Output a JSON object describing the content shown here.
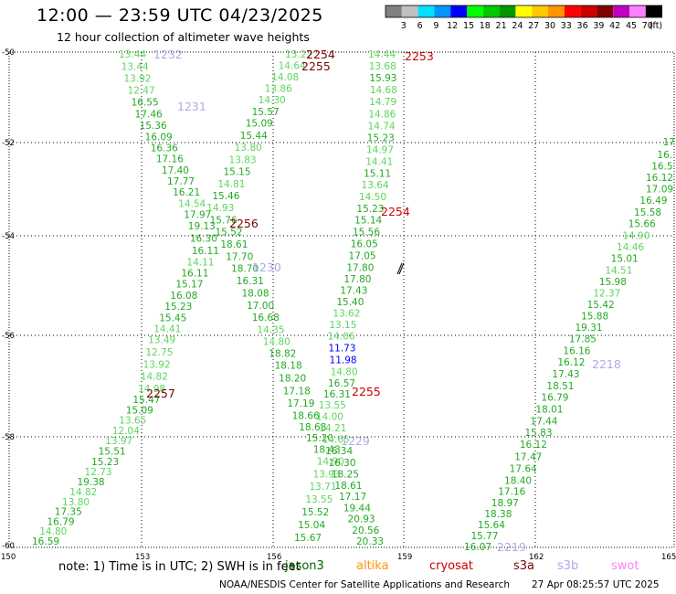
{
  "header": {
    "title": "12:00 — 23:59 UTC 04/23/2025",
    "subtitle": "12 hour collection of altimeter wave heights"
  },
  "scale": {
    "unit": "(ft)",
    "bins": [
      {
        "label": "",
        "color": "#808080"
      },
      {
        "label": "3",
        "color": "#c0c0c0"
      },
      {
        "label": "6",
        "color": "#00e0ff"
      },
      {
        "label": "9",
        "color": "#0096ff"
      },
      {
        "label": "12",
        "color": "#0000ff"
      },
      {
        "label": "15",
        "color": "#00ff00"
      },
      {
        "label": "18",
        "color": "#00c800"
      },
      {
        "label": "21",
        "color": "#009600"
      },
      {
        "label": "24",
        "color": "#ffff00"
      },
      {
        "label": "27",
        "color": "#ffc800"
      },
      {
        "label": "30",
        "color": "#ff9600"
      },
      {
        "label": "33",
        "color": "#ff0000"
      },
      {
        "label": "36",
        "color": "#c80000"
      },
      {
        "label": "39",
        "color": "#800000"
      },
      {
        "label": "42",
        "color": "#c000c0"
      },
      {
        "label": "45",
        "color": "#ff80ff"
      },
      {
        "label": "70",
        "color": "#000000"
      }
    ]
  },
  "axes": {
    "lat_labels": [
      "-50",
      "-52",
      "-54",
      "-56",
      "-58",
      "-60"
    ],
    "lon_labels": [
      "150",
      "153",
      "156",
      "159",
      "162",
      "165"
    ]
  },
  "tracks": [
    {
      "id": "t1",
      "values": [
        {
          "v": "13.44",
          "c": "#5cd65c"
        },
        {
          "v": "13.44",
          "c": "#5cd65c"
        },
        {
          "v": "13.92",
          "c": "#5cd65c"
        },
        {
          "v": "12.47",
          "c": "#5cd65c"
        },
        {
          "v": "16.55",
          "c": "#22aa22"
        },
        {
          "v": "17.46",
          "c": "#22aa22"
        },
        {
          "v": "15.36",
          "c": "#22aa22"
        },
        {
          "v": "16.09",
          "c": "#22aa22"
        },
        {
          "v": "16.36",
          "c": "#22aa22"
        },
        {
          "v": "17.16",
          "c": "#22aa22"
        },
        {
          "v": "17.40",
          "c": "#22aa22"
        },
        {
          "v": "17.77",
          "c": "#22aa22"
        },
        {
          "v": "16.21",
          "c": "#22aa22"
        },
        {
          "v": "14.54",
          "c": "#5cd65c"
        },
        {
          "v": "17.97",
          "c": "#22aa22"
        },
        {
          "v": "19.13",
          "c": "#22aa22"
        },
        {
          "v": "16.30",
          "c": "#22aa22"
        },
        {
          "v": "16.11",
          "c": "#22aa22"
        },
        {
          "v": "14.11",
          "c": "#5cd65c"
        },
        {
          "v": "16.11",
          "c": "#22aa22"
        },
        {
          "v": "15.17",
          "c": "#22aa22"
        },
        {
          "v": "16.08",
          "c": "#22aa22"
        },
        {
          "v": "15.23",
          "c": "#22aa22"
        },
        {
          "v": "15.45",
          "c": "#22aa22"
        },
        {
          "v": "14.41",
          "c": "#5cd65c"
        },
        {
          "v": "13.49",
          "c": "#5cd65c"
        },
        {
          "v": "12.75",
          "c": "#5cd65c"
        },
        {
          "v": "13.92",
          "c": "#5cd65c"
        },
        {
          "v": "14.82",
          "c": "#5cd65c"
        },
        {
          "v": "14.98",
          "c": "#5cd65c"
        },
        {
          "v": "15.47",
          "c": "#22aa22"
        },
        {
          "v": "15.09",
          "c": "#22aa22"
        },
        {
          "v": "13.65",
          "c": "#5cd65c"
        },
        {
          "v": "12.04",
          "c": "#5cd65c"
        },
        {
          "v": "13.97",
          "c": "#5cd65c"
        },
        {
          "v": "15.51",
          "c": "#22aa22"
        },
        {
          "v": "15.23",
          "c": "#22aa22"
        },
        {
          "v": "12.73",
          "c": "#5cd65c"
        },
        {
          "v": "19.38",
          "c": "#22aa22"
        },
        {
          "v": "14.82",
          "c": "#5cd65c"
        },
        {
          "v": "13.80",
          "c": "#5cd65c"
        },
        {
          "v": "17.35",
          "c": "#22aa22"
        },
        {
          "v": "16.79",
          "c": "#22aa22"
        },
        {
          "v": "14.80",
          "c": "#5cd65c"
        },
        {
          "v": "16.59",
          "c": "#22aa22"
        }
      ]
    },
    {
      "id": "t2",
      "values": [
        {
          "v": "13.27",
          "c": "#5cd65c"
        },
        {
          "v": "14.64",
          "c": "#5cd65c"
        },
        {
          "v": "14.08",
          "c": "#5cd65c"
        },
        {
          "v": "13.86",
          "c": "#5cd65c"
        },
        {
          "v": "14.30",
          "c": "#5cd65c"
        },
        {
          "v": "15.57",
          "c": "#22aa22"
        },
        {
          "v": "15.09",
          "c": "#22aa22"
        },
        {
          "v": "15.44",
          "c": "#22aa22"
        },
        {
          "v": "13.80",
          "c": "#5cd65c"
        },
        {
          "v": "13.83",
          "c": "#5cd65c"
        },
        {
          "v": "15.15",
          "c": "#22aa22"
        },
        {
          "v": "14.81",
          "c": "#5cd65c"
        },
        {
          "v": "15.46",
          "c": "#22aa22"
        },
        {
          "v": "14.93",
          "c": "#5cd65c"
        },
        {
          "v": "15.76",
          "c": "#22aa22"
        },
        {
          "v": "15.52",
          "c": "#22aa22"
        },
        {
          "v": "18.61",
          "c": "#22aa22"
        },
        {
          "v": "17.70",
          "c": "#22aa22"
        },
        {
          "v": "18.70",
          "c": "#22aa22"
        },
        {
          "v": "16.31",
          "c": "#22aa22"
        },
        {
          "v": "18.08",
          "c": "#22aa22"
        },
        {
          "v": "17.00",
          "c": "#22aa22"
        },
        {
          "v": "16.68",
          "c": "#22aa22"
        },
        {
          "v": "14.35",
          "c": "#5cd65c"
        },
        {
          "v": "14.80",
          "c": "#5cd65c"
        },
        {
          "v": "18.82",
          "c": "#22aa22"
        },
        {
          "v": "18.18",
          "c": "#22aa22"
        },
        {
          "v": "18.20",
          "c": "#22aa22"
        },
        {
          "v": "17.18",
          "c": "#22aa22"
        },
        {
          "v": "17.19",
          "c": "#22aa22"
        },
        {
          "v": "18.66",
          "c": "#22aa22"
        },
        {
          "v": "18.68",
          "c": "#22aa22"
        },
        {
          "v": "15.20",
          "c": "#22aa22"
        },
        {
          "v": "18.43",
          "c": "#22aa22"
        },
        {
          "v": "14.90",
          "c": "#5cd65c"
        },
        {
          "v": "13.93",
          "c": "#5cd65c"
        },
        {
          "v": "13.71",
          "c": "#5cd65c"
        },
        {
          "v": "13.55",
          "c": "#5cd65c"
        },
        {
          "v": "15.52",
          "c": "#22aa22"
        },
        {
          "v": "15.04",
          "c": "#22aa22"
        },
        {
          "v": "15.67",
          "c": "#22aa22"
        }
      ]
    },
    {
      "id": "t3",
      "values": [
        {
          "v": "14.44",
          "c": "#5cd65c"
        },
        {
          "v": "13.68",
          "c": "#5cd65c"
        },
        {
          "v": "15.93",
          "c": "#22aa22"
        },
        {
          "v": "14.68",
          "c": "#5cd65c"
        },
        {
          "v": "14.79",
          "c": "#5cd65c"
        },
        {
          "v": "14.86",
          "c": "#5cd65c"
        },
        {
          "v": "14.74",
          "c": "#5cd65c"
        },
        {
          "v": "15.23",
          "c": "#22aa22"
        },
        {
          "v": "14.97",
          "c": "#5cd65c"
        },
        {
          "v": "14.41",
          "c": "#5cd65c"
        },
        {
          "v": "15.11",
          "c": "#22aa22"
        },
        {
          "v": "13.64",
          "c": "#5cd65c"
        },
        {
          "v": "14.50",
          "c": "#5cd65c"
        },
        {
          "v": "15.23",
          "c": "#22aa22"
        },
        {
          "v": "15.14",
          "c": "#22aa22"
        },
        {
          "v": "15.56",
          "c": "#22aa22"
        },
        {
          "v": "16.05",
          "c": "#22aa22"
        },
        {
          "v": "17.05",
          "c": "#22aa22"
        },
        {
          "v": "17.80",
          "c": "#22aa22"
        },
        {
          "v": "17.80",
          "c": "#22aa22"
        },
        {
          "v": "17.43",
          "c": "#22aa22"
        },
        {
          "v": "15.40",
          "c": "#22aa22"
        },
        {
          "v": "13.62",
          "c": "#5cd65c"
        },
        {
          "v": "13.15",
          "c": "#5cd65c"
        },
        {
          "v": "14.06",
          "c": "#5cd65c"
        },
        {
          "v": "11.73",
          "c": "#0000ff"
        },
        {
          "v": "11.98",
          "c": "#0000ff"
        },
        {
          "v": "14.80",
          "c": "#5cd65c"
        },
        {
          "v": "16.57",
          "c": "#22aa22"
        },
        {
          "v": "16.31",
          "c": "#22aa22"
        },
        {
          "v": "13.55",
          "c": "#5cd65c"
        },
        {
          "v": "14.00",
          "c": "#5cd65c"
        },
        {
          "v": "14.21",
          "c": "#5cd65c"
        },
        {
          "v": "14.65",
          "c": "#5cd65c"
        },
        {
          "v": "16.34",
          "c": "#22aa22"
        },
        {
          "v": "16.30",
          "c": "#22aa22"
        },
        {
          "v": "18.25",
          "c": "#22aa22"
        },
        {
          "v": "18.61",
          "c": "#22aa22"
        },
        {
          "v": "17.17",
          "c": "#22aa22"
        },
        {
          "v": "19.44",
          "c": "#22aa22"
        },
        {
          "v": "20.93",
          "c": "#22aa22"
        },
        {
          "v": "20.56",
          "c": "#22aa22"
        },
        {
          "v": "20.33",
          "c": "#22aa22"
        }
      ]
    },
    {
      "id": "t4",
      "values": [
        {
          "v": "17",
          "c": "#22aa22"
        },
        {
          "v": "16.",
          "c": "#22aa22"
        },
        {
          "v": "16.5",
          "c": "#22aa22"
        },
        {
          "v": "16.12",
          "c": "#22aa22"
        },
        {
          "v": "17.09",
          "c": "#22aa22"
        },
        {
          "v": "16.49",
          "c": "#22aa22"
        },
        {
          "v": "15.58",
          "c": "#22aa22"
        },
        {
          "v": "15.66",
          "c": "#22aa22"
        },
        {
          "v": "14.90",
          "c": "#5cd65c"
        },
        {
          "v": "14.46",
          "c": "#5cd65c"
        },
        {
          "v": "15.01",
          "c": "#22aa22"
        },
        {
          "v": "14.51",
          "c": "#5cd65c"
        },
        {
          "v": "15.98",
          "c": "#22aa22"
        },
        {
          "v": "12.37",
          "c": "#5cd65c"
        },
        {
          "v": "15.42",
          "c": "#22aa22"
        },
        {
          "v": "15.88",
          "c": "#22aa22"
        },
        {
          "v": "19.31",
          "c": "#22aa22"
        },
        {
          "v": "17.85",
          "c": "#22aa22"
        },
        {
          "v": "16.16",
          "c": "#22aa22"
        },
        {
          "v": "16.12",
          "c": "#22aa22"
        },
        {
          "v": "17.43",
          "c": "#22aa22"
        },
        {
          "v": "18.51",
          "c": "#22aa22"
        },
        {
          "v": "16.79",
          "c": "#22aa22"
        },
        {
          "v": "18.01",
          "c": "#22aa22"
        },
        {
          "v": "17.44",
          "c": "#22aa22"
        },
        {
          "v": "15.83",
          "c": "#22aa22"
        },
        {
          "v": "16.12",
          "c": "#22aa22"
        },
        {
          "v": "17.47",
          "c": "#22aa22"
        },
        {
          "v": "17.64",
          "c": "#22aa22"
        },
        {
          "v": "18.40",
          "c": "#22aa22"
        },
        {
          "v": "17.16",
          "c": "#22aa22"
        },
        {
          "v": "18.97",
          "c": "#22aa22"
        },
        {
          "v": "18.38",
          "c": "#22aa22"
        },
        {
          "v": "15.64",
          "c": "#22aa22"
        },
        {
          "v": "15.77",
          "c": "#22aa22"
        },
        {
          "v": "16.07",
          "c": "#22aa22"
        }
      ]
    }
  ],
  "time_labels": [
    {
      "v": "2254",
      "c": "#800000"
    },
    {
      "v": "2255",
      "c": "#800000"
    },
    {
      "v": "2253",
      "c": "#cc0000"
    },
    {
      "v": "1232",
      "c": "#b0a8e8"
    },
    {
      "v": "1231",
      "c": "#b0a8e8"
    },
    {
      "v": "2256",
      "c": "#800000"
    },
    {
      "v": "2254",
      "c": "#cc0000"
    },
    {
      "v": "1230",
      "c": "#b0a8e8"
    },
    {
      "v": "2257",
      "c": "#800000"
    },
    {
      "v": "2255",
      "c": "#cc0000"
    },
    {
      "v": "1229",
      "c": "#b0a8e8"
    },
    {
      "v": "2218",
      "c": "#b0a8e8"
    },
    {
      "v": "2219",
      "c": "#b0a8e8"
    }
  ],
  "footer": {
    "note": "note:  1) Time is in UTC; 2) SWH is in feet",
    "satellites": [
      {
        "name": "jason3",
        "color": "#006400"
      },
      {
        "name": "altika",
        "color": "#ff9600"
      },
      {
        "name": "cryosat",
        "color": "#cc0000"
      },
      {
        "name": "s3a",
        "color": "#800000"
      },
      {
        "name": "s3b",
        "color": "#b0a8e8"
      },
      {
        "name": "swot",
        "color": "#ff80ff"
      }
    ],
    "credit": "NOAA/NESDIS Center for Satellite Applications and Research",
    "date": "27 Apr 08:25:57 UTC 2025"
  }
}
